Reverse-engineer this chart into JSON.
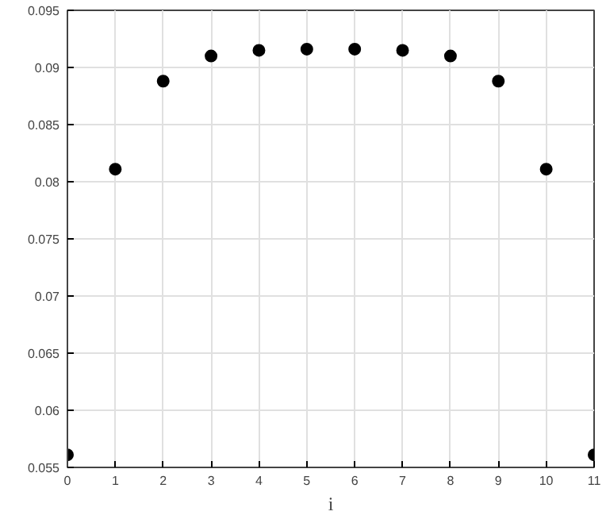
{
  "chart_data": {
    "type": "scatter",
    "xlabel": "i",
    "x": [
      0,
      1,
      2,
      3,
      4,
      5,
      6,
      7,
      8,
      9,
      10,
      11
    ],
    "series": [
      {
        "color": "#000000",
        "values": [
          0.0561,
          0.0811,
          0.0888,
          0.091,
          0.0915,
          0.0916,
          0.0916,
          0.0915,
          0.091,
          0.0888,
          0.0811,
          0.0561
        ]
      }
    ],
    "xlim": [
      0,
      11
    ],
    "ylim": [
      0.055,
      0.095
    ],
    "xticks": [
      0,
      1,
      2,
      3,
      4,
      5,
      6,
      7,
      8,
      9,
      10,
      11
    ],
    "yticks": [
      0.055,
      0.06,
      0.065,
      0.07,
      0.075,
      0.08,
      0.085,
      0.09,
      0.095
    ],
    "grid": true,
    "marker": "circle"
  }
}
